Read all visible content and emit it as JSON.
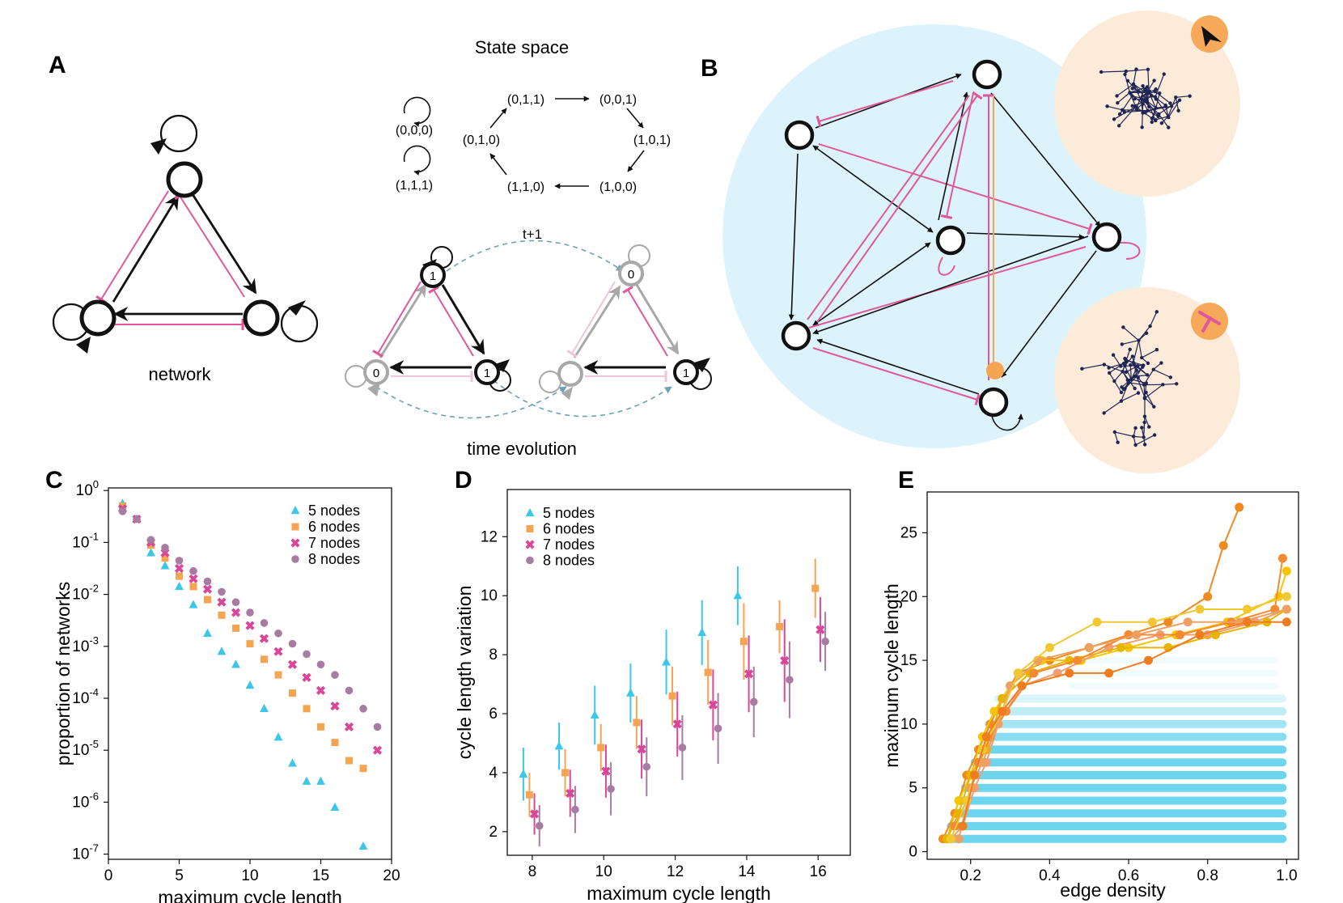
{
  "colors": {
    "pink": "#e0579a",
    "black": "#111111",
    "grey": "#a8a8a8",
    "lightpink": "#f0c4da",
    "dash": "#6aa3b8",
    "cyan": "#3cc7e8",
    "orange": "#f5a552",
    "magenta": "#d8479a",
    "purple": "#a87ba3",
    "bgBlue": "#dcf3fb",
    "bgPeach": "#fcebd9",
    "tree": "#1e2555",
    "badge": "#f7a95a"
  },
  "panelA": {
    "label": "A",
    "network_caption": "network",
    "state_space_title": "State space",
    "states": [
      "(0,0,0)",
      "(1,1,1)",
      "(0,1,1)",
      "(0,0,1)",
      "(1,0,1)",
      "(1,0,0)",
      "(1,1,0)",
      "(0,1,0)"
    ],
    "time_step_label": "t+1",
    "time_evolution_caption": "time evolution",
    "node_values_before": [
      "1",
      "0",
      "1"
    ],
    "node_values_after": [
      "0",
      "1"
    ]
  },
  "panelB": {
    "label": "B",
    "badge_icons": [
      "arrow-head-icon",
      "inhibition-icon"
    ]
  },
  "panelC": {
    "label": "C"
  },
  "panelD": {
    "label": "D"
  },
  "panelE": {
    "label": "E"
  },
  "chart_data": [
    {
      "panel": "C",
      "type": "scatter",
      "xlabel": "maximum cycle length",
      "ylabel": "proportion of networks",
      "xlim": [
        0,
        20
      ],
      "ylim": [
        -7.1,
        0.05
      ],
      "yscale": "log10",
      "xticks": [
        "0",
        "5",
        "10",
        "15",
        "20"
      ],
      "yticks": [
        {
          "b": "10",
          "e": "0",
          "v": 0
        },
        {
          "b": "10",
          "e": "-1",
          "v": -1
        },
        {
          "b": "10",
          "e": "-2",
          "v": -2
        },
        {
          "b": "10",
          "e": "-3",
          "v": -3
        },
        {
          "b": "10",
          "e": "-4",
          "v": -4
        },
        {
          "b": "10",
          "e": "-5",
          "v": -5
        },
        {
          "b": "10",
          "e": "-6",
          "v": -6
        },
        {
          "b": "10",
          "e": "-7",
          "v": -7
        }
      ],
      "legend_position": "top-right",
      "series": [
        {
          "name": "5 nodes",
          "marker": "triangle",
          "x": [
            1,
            2,
            3,
            4,
            5,
            6,
            7,
            8,
            9,
            10,
            11,
            12,
            13,
            14,
            15,
            16,
            18
          ],
          "log10y": [
            -0.25,
            -0.55,
            -1.2,
            -1.45,
            -1.85,
            -2.2,
            -2.75,
            -3.1,
            -3.35,
            -3.75,
            -4.2,
            -4.75,
            -5.25,
            -5.6,
            -5.6,
            -6.1,
            -6.85
          ]
        },
        {
          "name": "6 nodes",
          "marker": "square",
          "x": [
            1,
            2,
            3,
            4,
            5,
            6,
            7,
            8,
            9,
            10,
            11,
            12,
            13,
            14,
            15,
            16,
            17,
            18
          ],
          "log10y": [
            -0.3,
            -0.55,
            -1.05,
            -1.3,
            -1.65,
            -1.85,
            -2.1,
            -2.4,
            -2.65,
            -2.95,
            -3.25,
            -3.55,
            -3.9,
            -4.2,
            -4.55,
            -4.85,
            -5.2,
            -5.35
          ]
        },
        {
          "name": "7 nodes",
          "marker": "cross",
          "x": [
            1,
            2,
            3,
            4,
            5,
            6,
            7,
            8,
            9,
            10,
            11,
            12,
            13,
            14,
            15,
            16,
            17,
            19
          ],
          "log10y": [
            -0.35,
            -0.55,
            -1.0,
            -1.2,
            -1.5,
            -1.7,
            -1.9,
            -2.15,
            -2.35,
            -2.6,
            -2.85,
            -3.1,
            -3.35,
            -3.6,
            -3.85,
            -4.15,
            -4.55,
            -5.0
          ]
        },
        {
          "name": "8 nodes",
          "marker": "circle",
          "x": [
            1,
            2,
            3,
            4,
            5,
            6,
            7,
            8,
            9,
            10,
            11,
            12,
            13,
            14,
            15,
            16,
            17,
            18,
            19
          ],
          "log10y": [
            -0.4,
            -0.55,
            -0.95,
            -1.1,
            -1.35,
            -1.55,
            -1.75,
            -1.95,
            -2.15,
            -2.35,
            -2.55,
            -2.75,
            -2.95,
            -3.15,
            -3.35,
            -3.55,
            -3.85,
            -4.2,
            -4.55
          ]
        }
      ]
    },
    {
      "panel": "D",
      "type": "scatter",
      "xlabel": "maximum cycle length",
      "ylabel": "cycle length variation",
      "xlim": [
        7.3,
        16.9
      ],
      "ylim": [
        1.2,
        13.6
      ],
      "xticks": [
        8,
        10,
        12,
        14,
        16
      ],
      "yticks": [
        2,
        4,
        6,
        8,
        10,
        12
      ],
      "legend_position": "top-left",
      "series": [
        {
          "name": "5 nodes",
          "marker": "triangle",
          "offset": -0.25,
          "x": [
            8,
            9,
            10,
            11,
            12,
            13,
            14
          ],
          "y": [
            3.95,
            4.9,
            5.95,
            6.7,
            7.75,
            8.75,
            10.0
          ],
          "err": [
            0.9,
            0.8,
            1.0,
            1.0,
            1.1,
            1.1,
            1.0
          ]
        },
        {
          "name": "6 nodes",
          "marker": "square",
          "offset": -0.08,
          "x": [
            8,
            9,
            10,
            11,
            12,
            13,
            14,
            15,
            16
          ],
          "y": [
            3.25,
            4.0,
            4.85,
            5.7,
            6.6,
            7.4,
            8.45,
            8.95,
            10.25
          ],
          "err": [
            0.75,
            0.8,
            0.8,
            0.9,
            1.0,
            1.1,
            1.3,
            0.9,
            1.0
          ]
        },
        {
          "name": "7 nodes",
          "marker": "cross",
          "offset": 0.06,
          "x": [
            8,
            9,
            10,
            11,
            12,
            13,
            14,
            15,
            16
          ],
          "y": [
            2.6,
            3.3,
            4.05,
            4.8,
            5.65,
            6.3,
            7.35,
            7.8,
            8.85
          ],
          "err": [
            0.7,
            0.8,
            0.9,
            1.0,
            1.1,
            1.2,
            1.3,
            1.4,
            1.1
          ]
        },
        {
          "name": "8 nodes",
          "marker": "circle",
          "offset": 0.2,
          "x": [
            8,
            9,
            10,
            11,
            12,
            13,
            14,
            15,
            16
          ],
          "y": [
            2.2,
            2.75,
            3.45,
            4.2,
            4.85,
            5.5,
            6.4,
            7.15,
            8.45
          ],
          "err": [
            0.7,
            0.8,
            0.9,
            1.0,
            1.1,
            1.2,
            1.2,
            1.3,
            1.0
          ]
        }
      ]
    },
    {
      "panel": "E",
      "type": "scatter",
      "xlabel": "edge density",
      "ylabel": "maximum cycle length",
      "xlim": [
        0.09,
        1.03
      ],
      "ylim": [
        -0.6,
        28.2
      ],
      "xticks": [
        0.2,
        0.4,
        0.6,
        0.8,
        1.0
      ],
      "xtick_labels": [
        "0.2",
        "0.4",
        "0.6",
        "0.8",
        "1.0"
      ],
      "yticks": [
        0,
        5,
        10,
        15,
        20,
        25
      ],
      "background_band": {
        "x_start": 0.14,
        "x_end": 1.0,
        "y_min": 1,
        "y_max": 12
      },
      "trajectories": [
        {
          "color": "#f08a1e",
          "x": [
            0.13,
            0.16,
            0.19,
            0.22,
            0.25,
            0.28,
            0.32,
            0.4,
            0.5,
            0.6,
            0.7,
            0.8,
            0.84,
            0.88
          ],
          "y": [
            1,
            3,
            6,
            8,
            10,
            12,
            14,
            15,
            16,
            17,
            18,
            20,
            24,
            27
          ]
        },
        {
          "color": "#f6c400",
          "x": [
            0.14,
            0.17,
            0.2,
            0.23,
            0.26,
            0.3,
            0.38,
            0.48,
            0.6,
            0.72,
            0.85,
            0.98,
            1.0
          ],
          "y": [
            1,
            4,
            6,
            9,
            11,
            13,
            15,
            15,
            16,
            17,
            18,
            20,
            22
          ]
        },
        {
          "color": "#f29c73",
          "x": [
            0.15,
            0.18,
            0.21,
            0.24,
            0.27,
            0.33,
            0.42,
            0.55,
            0.68,
            0.8,
            0.92,
            1.0
          ],
          "y": [
            1,
            2,
            5,
            7,
            10,
            13,
            14,
            16,
            17,
            17,
            18,
            19
          ]
        },
        {
          "color": "#e7b400",
          "x": [
            0.14,
            0.17,
            0.2,
            0.24,
            0.28,
            0.35,
            0.45,
            0.58,
            0.7,
            0.82,
            0.95,
            1.0
          ],
          "y": [
            1,
            3,
            6,
            8,
            12,
            14,
            15,
            16,
            16,
            17,
            18,
            19
          ]
        },
        {
          "color": "#f4892f",
          "x": [
            0.16,
            0.19,
            0.22,
            0.25,
            0.29,
            0.36,
            0.47,
            0.6,
            0.73,
            0.86,
            0.97,
            0.99
          ],
          "y": [
            2,
            4,
            7,
            9,
            11,
            14,
            15,
            17,
            17,
            18,
            19,
            23
          ]
        },
        {
          "color": "#eda060",
          "x": [
            0.17,
            0.2,
            0.23,
            0.27,
            0.3,
            0.37,
            0.5,
            0.62,
            0.75,
            0.88,
            1.0
          ],
          "y": [
            1,
            5,
            7,
            10,
            13,
            15,
            16,
            17,
            18,
            18,
            19
          ]
        },
        {
          "color": "#f2c830",
          "x": [
            0.15,
            0.19,
            0.23,
            0.28,
            0.32,
            0.4,
            0.52,
            0.66,
            0.78,
            0.9,
            1.0
          ],
          "y": [
            1,
            4,
            8,
            11,
            14,
            16,
            18,
            18,
            19,
            19,
            20
          ]
        },
        {
          "color": "#ef7d20",
          "x": [
            0.18,
            0.21,
            0.24,
            0.28,
            0.33,
            0.45,
            0.55,
            0.65,
            0.78,
            0.9,
            1.0
          ],
          "y": [
            2,
            6,
            9,
            11,
            13,
            14,
            14,
            15,
            17,
            18,
            18
          ]
        }
      ]
    }
  ]
}
